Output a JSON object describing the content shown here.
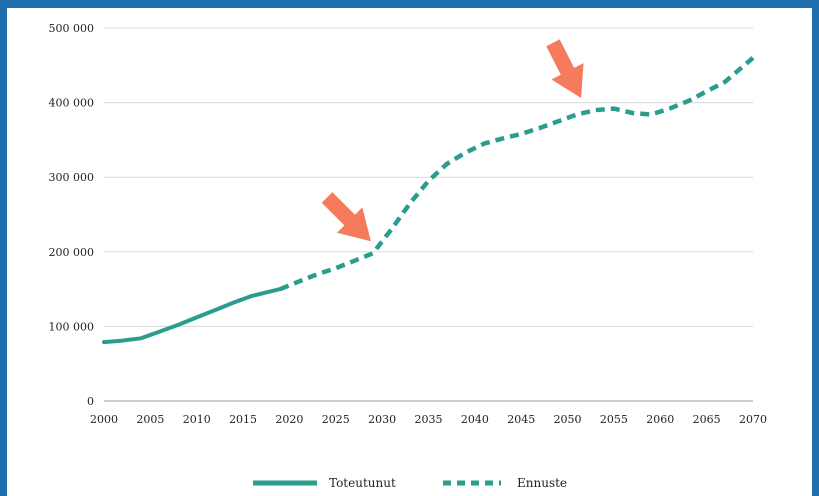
{
  "chart_data": {
    "type": "line",
    "title": "",
    "xlabel": "",
    "ylabel": "",
    "xlim": [
      2000,
      2070
    ],
    "ylim": [
      0,
      500000
    ],
    "x_ticks": [
      "2000",
      "2005",
      "2010",
      "2015",
      "2020",
      "2025",
      "2030",
      "2035",
      "2040",
      "2045",
      "2050",
      "2055",
      "2060",
      "2065",
      "2070"
    ],
    "y_ticks": [
      "0",
      "100 000",
      "200 000",
      "300 000",
      "400 000",
      "500 000"
    ],
    "grid": "horizontal",
    "legend_placement": "bottom",
    "colors": {
      "series": "#2a9d8f",
      "arrow": "#f47c5d",
      "grid": "#d9d9d9",
      "frame": "#1f6fae"
    },
    "series": [
      {
        "name": "Toteutunut",
        "style": "solid",
        "x": [
          2000,
          2002,
          2004,
          2006,
          2008,
          2010,
          2012,
          2014,
          2016,
          2018,
          2019
        ],
        "values": [
          79000,
          81000,
          84000,
          93000,
          102000,
          112000,
          122000,
          132000,
          141000,
          147000,
          150000
        ]
      },
      {
        "name": "Ennuste",
        "style": "dashed",
        "x": [
          2019,
          2021,
          2023,
          2025,
          2027,
          2029,
          2031,
          2033,
          2035,
          2037,
          2039,
          2041,
          2043,
          2045,
          2047,
          2049,
          2051,
          2053,
          2055,
          2057,
          2059,
          2061,
          2063,
          2065,
          2067,
          2070
        ],
        "values": [
          150000,
          160000,
          170000,
          178000,
          188000,
          198000,
          230000,
          265000,
          295000,
          318000,
          333000,
          345000,
          352000,
          358000,
          366000,
          375000,
          384000,
          390000,
          392000,
          386000,
          384000,
          392000,
          402000,
          415000,
          428000,
          460000
        ]
      }
    ],
    "annotations": [
      {
        "type": "arrow",
        "points_to": [
          2029,
          198000
        ]
      },
      {
        "type": "arrow",
        "points_to": [
          2052,
          390000
        ]
      }
    ]
  }
}
